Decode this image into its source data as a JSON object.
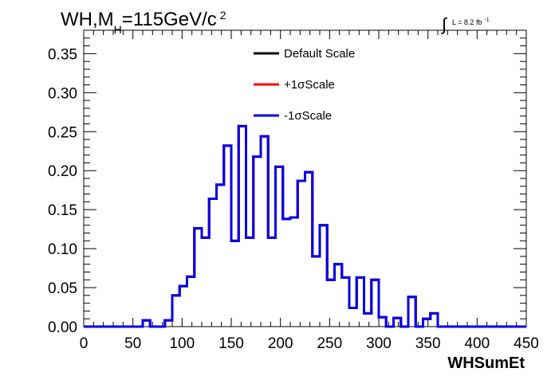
{
  "chart_data": {
    "type": "line",
    "title_main": "WH,M",
    "title_sub": "H",
    "title_tail": "=115GeV/c",
    "title_sup": "2",
    "lumi_integral": "∫",
    "lumi_label": "L = 8.2 fb",
    "lumi_sup": "-1",
    "xlabel": "WHSumEt",
    "ylabel": "",
    "xlim": [
      0,
      450
    ],
    "ylim": [
      0,
      0.38
    ],
    "x_ticks": [
      "0",
      "50",
      "100",
      "150",
      "200",
      "250",
      "300",
      "350",
      "400",
      "450"
    ],
    "y_ticks": [
      "0.00",
      "0.05",
      "0.10",
      "0.15",
      "0.20",
      "0.25",
      "0.30",
      "0.35"
    ],
    "bin_width": 7.5,
    "bin_edges_start": 0,
    "histogram_style": "step",
    "legend_position": "top-center",
    "series": [
      {
        "name": "Default Scale",
        "color": "#000000"
      },
      {
        "name": "+1σScale",
        "color": "#ff0000"
      },
      {
        "name": "-1σScale",
        "color": "#0000ee"
      }
    ],
    "values": [
      0,
      0,
      0,
      0,
      0,
      0,
      0,
      0,
      0.008,
      0,
      0,
      0.008,
      0.04,
      0.052,
      0.064,
      0.126,
      0.114,
      0.164,
      0.182,
      0.232,
      0.11,
      0.257,
      0.114,
      0.218,
      0.244,
      0.114,
      0.205,
      0.138,
      0.14,
      0.187,
      0.198,
      0.09,
      0.13,
      0.06,
      0.08,
      0.063,
      0.024,
      0.063,
      0.017,
      0.06,
      0.012,
      0,
      0.011,
      0,
      0.038,
      0,
      0.01,
      0.017,
      0,
      0,
      0,
      0,
      0,
      0,
      0,
      0,
      0,
      0,
      0,
      0
    ]
  }
}
